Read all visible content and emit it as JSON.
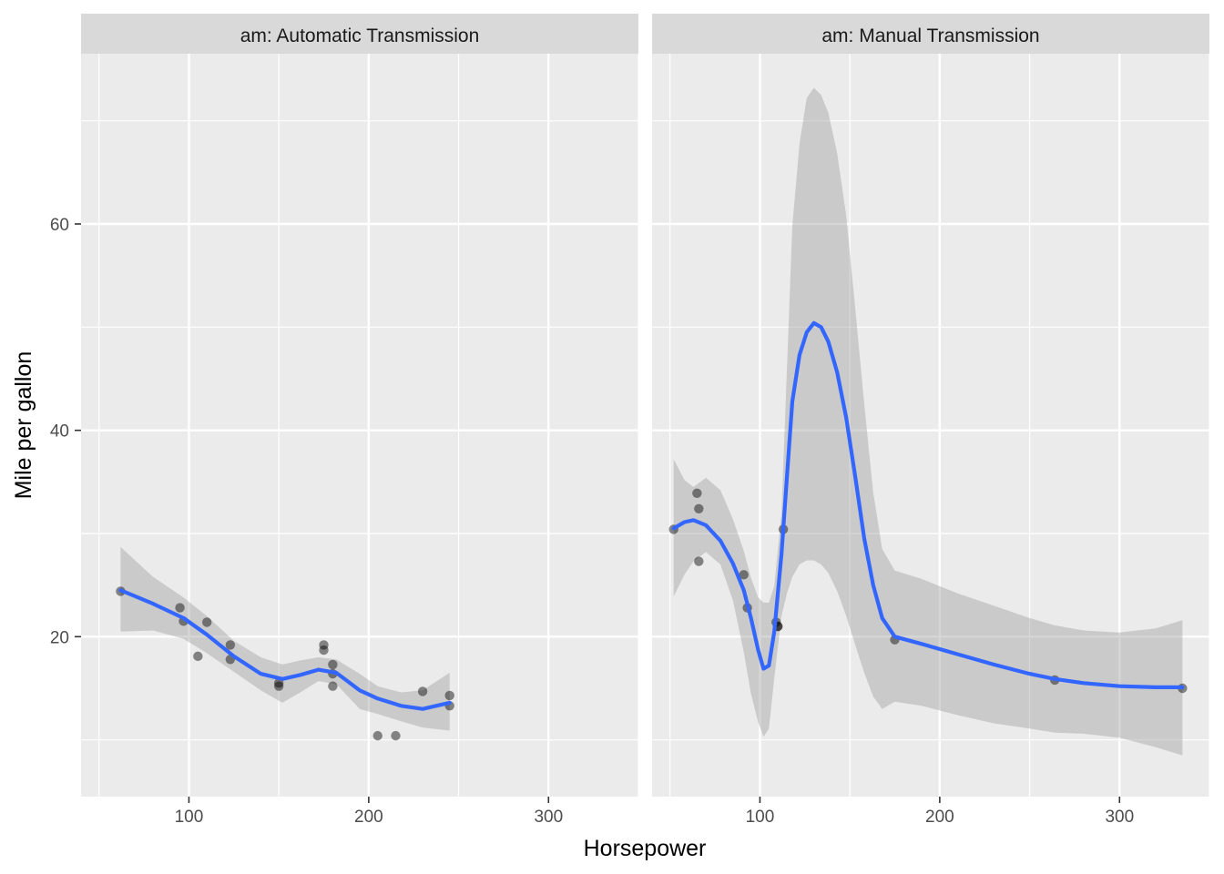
{
  "chart_data": {
    "type": "scatter",
    "xlabel": "Horsepower",
    "ylabel": "Mile per gallon",
    "xlim": [
      40,
      350
    ],
    "ylim": [
      4.5,
      76.5
    ],
    "x_ticks": [
      100,
      200,
      300
    ],
    "y_ticks": [
      20,
      40,
      60
    ],
    "grid": true,
    "smoother": {
      "method": "loess",
      "line_color": "#3366FF",
      "band_color": "#999999",
      "band_opacity": 0.4
    },
    "point_color": "#000000",
    "point_opacity": 0.45,
    "panels": [
      {
        "label": "am: Automatic Transmission",
        "points": [
          {
            "x": 62,
            "y": 24.4
          },
          {
            "x": 95,
            "y": 22.8
          },
          {
            "x": 97,
            "y": 21.5
          },
          {
            "x": 105,
            "y": 18.1
          },
          {
            "x": 110,
            "y": 21.4
          },
          {
            "x": 123,
            "y": 19.2
          },
          {
            "x": 123,
            "y": 17.8
          },
          {
            "x": 150,
            "y": 15.5
          },
          {
            "x": 150,
            "y": 15.2
          },
          {
            "x": 175,
            "y": 18.7
          },
          {
            "x": 175,
            "y": 19.2
          },
          {
            "x": 180,
            "y": 16.4
          },
          {
            "x": 180,
            "y": 17.3
          },
          {
            "x": 180,
            "y": 15.2
          },
          {
            "x": 205,
            "y": 10.4
          },
          {
            "x": 215,
            "y": 10.4
          },
          {
            "x": 230,
            "y": 14.7
          },
          {
            "x": 245,
            "y": 14.3
          },
          {
            "x": 245,
            "y": 13.3
          }
        ],
        "fit": [
          {
            "x": 62,
            "y": 24.5,
            "lo": 20.5,
            "hi": 28.7
          },
          {
            "x": 80,
            "y": 23.2,
            "lo": 20.6,
            "hi": 25.8
          },
          {
            "x": 97,
            "y": 21.8,
            "lo": 19.8,
            "hi": 23.8
          },
          {
            "x": 110,
            "y": 20.2,
            "lo": 18.4,
            "hi": 22.0
          },
          {
            "x": 125,
            "y": 18.1,
            "lo": 16.6,
            "hi": 19.6
          },
          {
            "x": 140,
            "y": 16.4,
            "lo": 14.8,
            "hi": 18.0
          },
          {
            "x": 152,
            "y": 15.9,
            "lo": 13.6,
            "hi": 17.3
          },
          {
            "x": 162,
            "y": 16.3,
            "lo": 14.6,
            "hi": 17.7
          },
          {
            "x": 172,
            "y": 16.8,
            "lo": 15.7,
            "hi": 18.0
          },
          {
            "x": 182,
            "y": 16.5,
            "lo": 15.4,
            "hi": 17.8
          },
          {
            "x": 195,
            "y": 14.8,
            "lo": 13.0,
            "hi": 16.4
          },
          {
            "x": 205,
            "y": 14.0,
            "lo": 12.5,
            "hi": 15.2
          },
          {
            "x": 218,
            "y": 13.3,
            "lo": 11.8,
            "hi": 14.6
          },
          {
            "x": 230,
            "y": 13.0,
            "lo": 11.2,
            "hi": 14.8
          },
          {
            "x": 245,
            "y": 13.6,
            "lo": 10.9,
            "hi": 16.5
          }
        ]
      },
      {
        "label": "am: Manual Transmission",
        "points": [
          {
            "x": 52,
            "y": 30.4
          },
          {
            "x": 65,
            "y": 33.9
          },
          {
            "x": 66,
            "y": 32.4
          },
          {
            "x": 66,
            "y": 27.3
          },
          {
            "x": 91,
            "y": 26.0
          },
          {
            "x": 93,
            "y": 22.8
          },
          {
            "x": 109,
            "y": 21.4
          },
          {
            "x": 110,
            "y": 21.0
          },
          {
            "x": 110,
            "y": 21.0
          },
          {
            "x": 113,
            "y": 30.4
          },
          {
            "x": 175,
            "y": 19.7
          },
          {
            "x": 264,
            "y": 15.8
          },
          {
            "x": 335,
            "y": 15.0
          }
        ],
        "fit": [
          {
            "x": 52,
            "y": 30.5,
            "lo": 23.9,
            "hi": 37.2
          },
          {
            "x": 58,
            "y": 31.1,
            "lo": 26.0,
            "hi": 35.2
          },
          {
            "x": 63,
            "y": 31.3,
            "lo": 27.3,
            "hi": 34.5
          },
          {
            "x": 70,
            "y": 30.8,
            "lo": 28.2,
            "hi": 35.4
          },
          {
            "x": 78,
            "y": 29.3,
            "lo": 27.0,
            "hi": 34.2
          },
          {
            "x": 85,
            "y": 27.1,
            "lo": 23.5,
            "hi": 31.4
          },
          {
            "x": 91,
            "y": 24.5,
            "lo": 18.5,
            "hi": 28.3
          },
          {
            "x": 95,
            "y": 21.8,
            "lo": 14.5,
            "hi": 25.7
          },
          {
            "x": 99,
            "y": 18.7,
            "lo": 11.7,
            "hi": 23.8
          },
          {
            "x": 102,
            "y": 16.9,
            "lo": 10.3,
            "hi": 23.3
          },
          {
            "x": 105,
            "y": 17.2,
            "lo": 11.1,
            "hi": 23.3
          },
          {
            "x": 108,
            "y": 20.5,
            "lo": 16.0,
            "hi": 24.9
          },
          {
            "x": 112,
            "y": 28.0,
            "lo": 22.0,
            "hi": 32.0
          },
          {
            "x": 115,
            "y": 35.5,
            "lo": 24.2,
            "hi": 46.0
          },
          {
            "x": 118,
            "y": 42.8,
            "lo": 25.8,
            "hi": 59.8
          },
          {
            "x": 122,
            "y": 47.3,
            "lo": 27.0,
            "hi": 67.8
          },
          {
            "x": 126,
            "y": 49.5,
            "lo": 27.4,
            "hi": 72.2
          },
          {
            "x": 130,
            "y": 50.4,
            "lo": 27.4,
            "hi": 73.2
          },
          {
            "x": 134,
            "y": 50.0,
            "lo": 27.0,
            "hi": 72.5
          },
          {
            "x": 138,
            "y": 48.6,
            "lo": 26.2,
            "hi": 70.8
          },
          {
            "x": 143,
            "y": 45.6,
            "lo": 24.4,
            "hi": 66.8
          },
          {
            "x": 148,
            "y": 41.2,
            "lo": 22.0,
            "hi": 60.8
          },
          {
            "x": 153,
            "y": 35.5,
            "lo": 19.2,
            "hi": 51.8
          },
          {
            "x": 158,
            "y": 29.5,
            "lo": 16.5,
            "hi": 42.5
          },
          {
            "x": 163,
            "y": 25.0,
            "lo": 14.2,
            "hi": 34.0
          },
          {
            "x": 168,
            "y": 21.8,
            "lo": 13.0,
            "hi": 28.5
          },
          {
            "x": 175,
            "y": 20.0,
            "lo": 13.7,
            "hi": 26.4
          },
          {
            "x": 190,
            "y": 19.3,
            "lo": 13.3,
            "hi": 25.6
          },
          {
            "x": 210,
            "y": 18.3,
            "lo": 12.4,
            "hi": 24.2
          },
          {
            "x": 230,
            "y": 17.3,
            "lo": 11.6,
            "hi": 23.0
          },
          {
            "x": 250,
            "y": 16.4,
            "lo": 11.1,
            "hi": 21.8
          },
          {
            "x": 264,
            "y": 15.9,
            "lo": 10.7,
            "hi": 21.1
          },
          {
            "x": 280,
            "y": 15.5,
            "lo": 10.6,
            "hi": 20.6
          },
          {
            "x": 300,
            "y": 15.2,
            "lo": 10.2,
            "hi": 20.4
          },
          {
            "x": 320,
            "y": 15.1,
            "lo": 9.3,
            "hi": 20.8
          },
          {
            "x": 335,
            "y": 15.1,
            "lo": 8.5,
            "hi": 21.6
          }
        ]
      }
    ]
  }
}
